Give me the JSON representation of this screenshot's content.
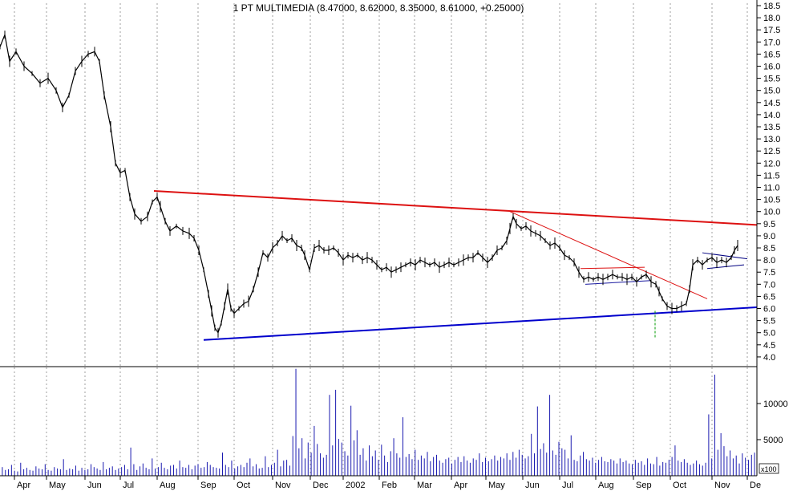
{
  "chart_data": {
    "type": "line",
    "title": "1 PT MULTIMEDIA (8.47000, 8.62000, 8.35000, 8.61000, +0.25000)",
    "x_ticks": [
      "Apr",
      "May",
      "Jun",
      "Jul",
      "Aug",
      "Sep",
      "Oct",
      "Nov",
      "Dec",
      "2002",
      "Feb",
      "Mar",
      "Apr",
      "May",
      "Jun",
      "Jul",
      "Aug",
      "Sep",
      "Oct",
      "Nov",
      "De"
    ],
    "price_axis": {
      "ylim": [
        3.6,
        18.6
      ],
      "ticks": [
        "18.5",
        "18.0",
        "17.5",
        "17.0",
        "16.5",
        "16.0",
        "15.5",
        "15.0",
        "14.5",
        "14.0",
        "13.5",
        "13.0",
        "12.5",
        "12.0",
        "11.5",
        "11.0",
        "10.5",
        "10.0",
        "9.5",
        "9.0",
        "8.5",
        "8.0",
        "7.5",
        "7.0",
        "6.5",
        "6.0",
        "5.5",
        "5.0",
        "4.5",
        "4.0"
      ]
    },
    "volume_axis": {
      "ylim": [
        0,
        15000
      ],
      "ticks": [
        "10000",
        "5000"
      ],
      "unit_label": "x100"
    },
    "price_series": {
      "name": "",
      "points": [
        [
          0,
          16.8
        ],
        [
          6,
          17.3
        ],
        [
          12,
          16.2
        ],
        [
          20,
          16.6
        ],
        [
          30,
          16.0
        ],
        [
          40,
          15.7
        ],
        [
          50,
          15.3
        ],
        [
          60,
          15.5
        ],
        [
          70,
          15.0
        ],
        [
          78,
          14.3
        ],
        [
          86,
          14.8
        ],
        [
          94,
          15.8
        ],
        [
          102,
          16.2
        ],
        [
          110,
          16.5
        ],
        [
          118,
          16.6
        ],
        [
          124,
          16.2
        ],
        [
          130,
          14.8
        ],
        [
          138,
          13.5
        ],
        [
          144,
          12.0
        ],
        [
          150,
          11.6
        ],
        [
          156,
          11.7
        ],
        [
          162,
          10.6
        ],
        [
          168,
          9.9
        ],
        [
          176,
          9.6
        ],
        [
          184,
          9.8
        ],
        [
          190,
          10.4
        ],
        [
          196,
          10.6
        ],
        [
          200,
          10.2
        ],
        [
          206,
          9.6
        ],
        [
          212,
          9.2
        ],
        [
          220,
          9.4
        ],
        [
          228,
          9.2
        ],
        [
          236,
          9.1
        ],
        [
          242,
          8.9
        ],
        [
          248,
          8.4
        ],
        [
          254,
          7.6
        ],
        [
          260,
          6.6
        ],
        [
          264,
          5.9
        ],
        [
          268,
          5.2
        ],
        [
          272,
          5.0
        ],
        [
          276,
          5.4
        ],
        [
          280,
          6.1
        ],
        [
          284,
          6.8
        ],
        [
          288,
          6.0
        ],
        [
          292,
          5.8
        ],
        [
          298,
          6.0
        ],
        [
          304,
          6.2
        ],
        [
          310,
          6.3
        ],
        [
          316,
          6.8
        ],
        [
          322,
          7.5
        ],
        [
          328,
          8.3
        ],
        [
          334,
          8.1
        ],
        [
          340,
          8.5
        ],
        [
          346,
          8.7
        ],
        [
          352,
          9.0
        ],
        [
          358,
          8.8
        ],
        [
          364,
          8.9
        ],
        [
          370,
          8.6
        ],
        [
          376,
          8.5
        ],
        [
          380,
          8.2
        ],
        [
          386,
          7.6
        ],
        [
          392,
          8.5
        ],
        [
          398,
          8.6
        ],
        [
          404,
          8.4
        ],
        [
          410,
          8.4
        ],
        [
          416,
          8.5
        ],
        [
          422,
          8.3
        ],
        [
          428,
          8.0
        ],
        [
          434,
          8.2
        ],
        [
          440,
          8.1
        ],
        [
          446,
          8.2
        ],
        [
          452,
          8.0
        ],
        [
          458,
          8.1
        ],
        [
          464,
          8.0
        ],
        [
          470,
          7.8
        ],
        [
          476,
          7.6
        ],
        [
          482,
          7.7
        ],
        [
          488,
          7.5
        ],
        [
          494,
          7.6
        ],
        [
          500,
          7.7
        ],
        [
          506,
          7.8
        ],
        [
          512,
          7.9
        ],
        [
          518,
          7.8
        ],
        [
          524,
          8.0
        ],
        [
          530,
          7.9
        ],
        [
          536,
          7.8
        ],
        [
          542,
          7.9
        ],
        [
          548,
          7.7
        ],
        [
          554,
          7.8
        ],
        [
          560,
          7.9
        ],
        [
          566,
          7.8
        ],
        [
          572,
          7.9
        ],
        [
          578,
          8.0
        ],
        [
          584,
          8.1
        ],
        [
          590,
          8.1
        ],
        [
          596,
          8.3
        ],
        [
          602,
          8.1
        ],
        [
          608,
          7.9
        ],
        [
          614,
          8.1
        ],
        [
          620,
          8.4
        ],
        [
          626,
          8.5
        ],
        [
          632,
          8.8
        ],
        [
          636,
          9.3
        ],
        [
          640,
          9.8
        ],
        [
          644,
          9.5
        ],
        [
          650,
          9.3
        ],
        [
          656,
          9.4
        ],
        [
          662,
          9.2
        ],
        [
          668,
          9.1
        ],
        [
          674,
          9.0
        ],
        [
          680,
          8.8
        ],
        [
          686,
          8.6
        ],
        [
          692,
          8.7
        ],
        [
          698,
          8.5
        ],
        [
          704,
          8.2
        ],
        [
          710,
          8.1
        ],
        [
          716,
          7.9
        ],
        [
          722,
          7.5
        ],
        [
          728,
          7.2
        ],
        [
          734,
          7.3
        ],
        [
          740,
          7.2
        ],
        [
          746,
          7.3
        ],
        [
          752,
          7.2
        ],
        [
          758,
          7.3
        ],
        [
          764,
          7.4
        ],
        [
          770,
          7.3
        ],
        [
          776,
          7.3
        ],
        [
          782,
          7.2
        ],
        [
          788,
          7.3
        ],
        [
          794,
          7.1
        ],
        [
          800,
          7.3
        ],
        [
          806,
          7.4
        ],
        [
          812,
          7.1
        ],
        [
          818,
          7.0
        ],
        [
          822,
          6.7
        ],
        [
          826,
          6.4
        ],
        [
          832,
          6.1
        ],
        [
          838,
          6.0
        ],
        [
          844,
          6.0
        ],
        [
          850,
          6.1
        ],
        [
          856,
          6.2
        ],
        [
          860,
          6.8
        ],
        [
          864,
          7.8
        ],
        [
          870,
          8.0
        ],
        [
          876,
          7.8
        ],
        [
          882,
          8.0
        ],
        [
          888,
          8.1
        ],
        [
          894,
          7.9
        ],
        [
          900,
          8.0
        ],
        [
          906,
          7.9
        ],
        [
          912,
          8.1
        ],
        [
          916,
          8.4
        ],
        [
          920,
          8.6
        ]
      ]
    },
    "trend_lines": [
      {
        "color": "#dd1111",
        "width": 2,
        "from": [
          192,
          10.85
        ],
        "to": [
          944,
          9.45
        ]
      },
      {
        "color": "#dd1111",
        "width": 1,
        "from": [
          636,
          10.0
        ],
        "to": [
          882,
          6.4
        ]
      },
      {
        "color": "#dd1111",
        "width": 1,
        "from": [
          724,
          7.65
        ],
        "to": [
          804,
          7.7
        ]
      },
      {
        "color": "#1a1aa0",
        "width": 1,
        "from": [
          730,
          7.0
        ],
        "to": [
          812,
          7.15
        ]
      },
      {
        "color": "#0000cc",
        "width": 2,
        "from": [
          254,
          4.7
        ],
        "to": [
          944,
          6.05
        ]
      },
      {
        "color": "#000080",
        "width": 1,
        "from": [
          876,
          8.3
        ],
        "to": [
          932,
          8.05
        ]
      },
      {
        "color": "#000080",
        "width": 1,
        "from": [
          882,
          7.65
        ],
        "to": [
          928,
          7.8
        ]
      }
    ],
    "dashed_line": {
      "color": "#009900",
      "x": 817,
      "from": 5.9,
      "to": 4.8
    },
    "volume_series": [
      1200,
      800,
      900,
      1500,
      700,
      600,
      1800,
      900,
      1100,
      800,
      700,
      1300,
      1000,
      900,
      1600,
      800,
      700,
      1200,
      1000,
      900,
      2300,
      800,
      1000,
      900,
      1400,
      700,
      1100,
      800,
      900,
      1600,
      1200,
      1000,
      800,
      1900,
      900,
      1100,
      1300,
      800,
      1000,
      1200,
      1500,
      900,
      3900,
      1600,
      800,
      1300,
      1700,
      1100,
      900,
      2400,
      1000,
      1200,
      1800,
      1100,
      900,
      1400,
      1500,
      1000,
      2100,
      1200,
      1100,
      1500,
      900,
      1400,
      1600,
      1100,
      1200,
      1900,
      1500,
      1200,
      1100,
      1000,
      3200,
      1500,
      1200,
      2100,
      1000,
      1300,
      1500,
      1200,
      1800,
      2400,
      1300,
      1600,
      1000,
      1100,
      2700,
      1200,
      1500,
      1800,
      3600,
      1300,
      2100,
      2200,
      1400,
      5500,
      14800,
      3800,
      5200,
      2400,
      4600,
      3200,
      6900,
      4400,
      3100,
      2500,
      2900,
      11200,
      4200,
      11900,
      5100,
      4600,
      3400,
      2800,
      9700,
      4900,
      6300,
      2900,
      3800,
      2100,
      4200,
      2700,
      3500,
      2200,
      4300,
      2800,
      1900,
      3400,
      5200,
      3100,
      2500,
      8100,
      2600,
      3000,
      2300,
      3600,
      2200,
      2800,
      2400,
      3300,
      2000,
      2600,
      2900,
      2100,
      1800,
      2300,
      2500,
      1700,
      2200,
      2600,
      1900,
      2700,
      2100,
      1800,
      2400,
      2200,
      3100,
      1900,
      2500,
      2000,
      2300,
      2800,
      2100,
      2600,
      2400,
      3100,
      2200,
      3300,
      2500,
      3600,
      2900,
      2400,
      2700,
      5800,
      3100,
      9600,
      3700,
      4500,
      3200,
      11200,
      3500,
      2900,
      4700,
      3800,
      3600,
      2400,
      5600,
      2200,
      2000,
      2800,
      3300,
      2300,
      2100,
      2500,
      1800,
      2200,
      2600,
      2000,
      1900,
      2300,
      2100,
      1700,
      2400,
      1900,
      2100,
      1700,
      1600,
      2200,
      1800,
      2000,
      1500,
      2400,
      1700,
      1600,
      2600,
      1400,
      1900,
      1800,
      2200,
      2600,
      4200,
      2100,
      1900,
      2300,
      1800,
      1500,
      1700,
      2100,
      1600,
      1400,
      1800,
      8500,
      2400,
      14000,
      3600,
      5900,
      4100,
      2700,
      3500,
      2400,
      2800,
      1700,
      3100,
      2500,
      2200,
      2900,
      3200
    ]
  },
  "colors": {
    "price": "#000000",
    "grid": "#777777",
    "volume": "#1a1ab0",
    "background": "#ffffff"
  }
}
